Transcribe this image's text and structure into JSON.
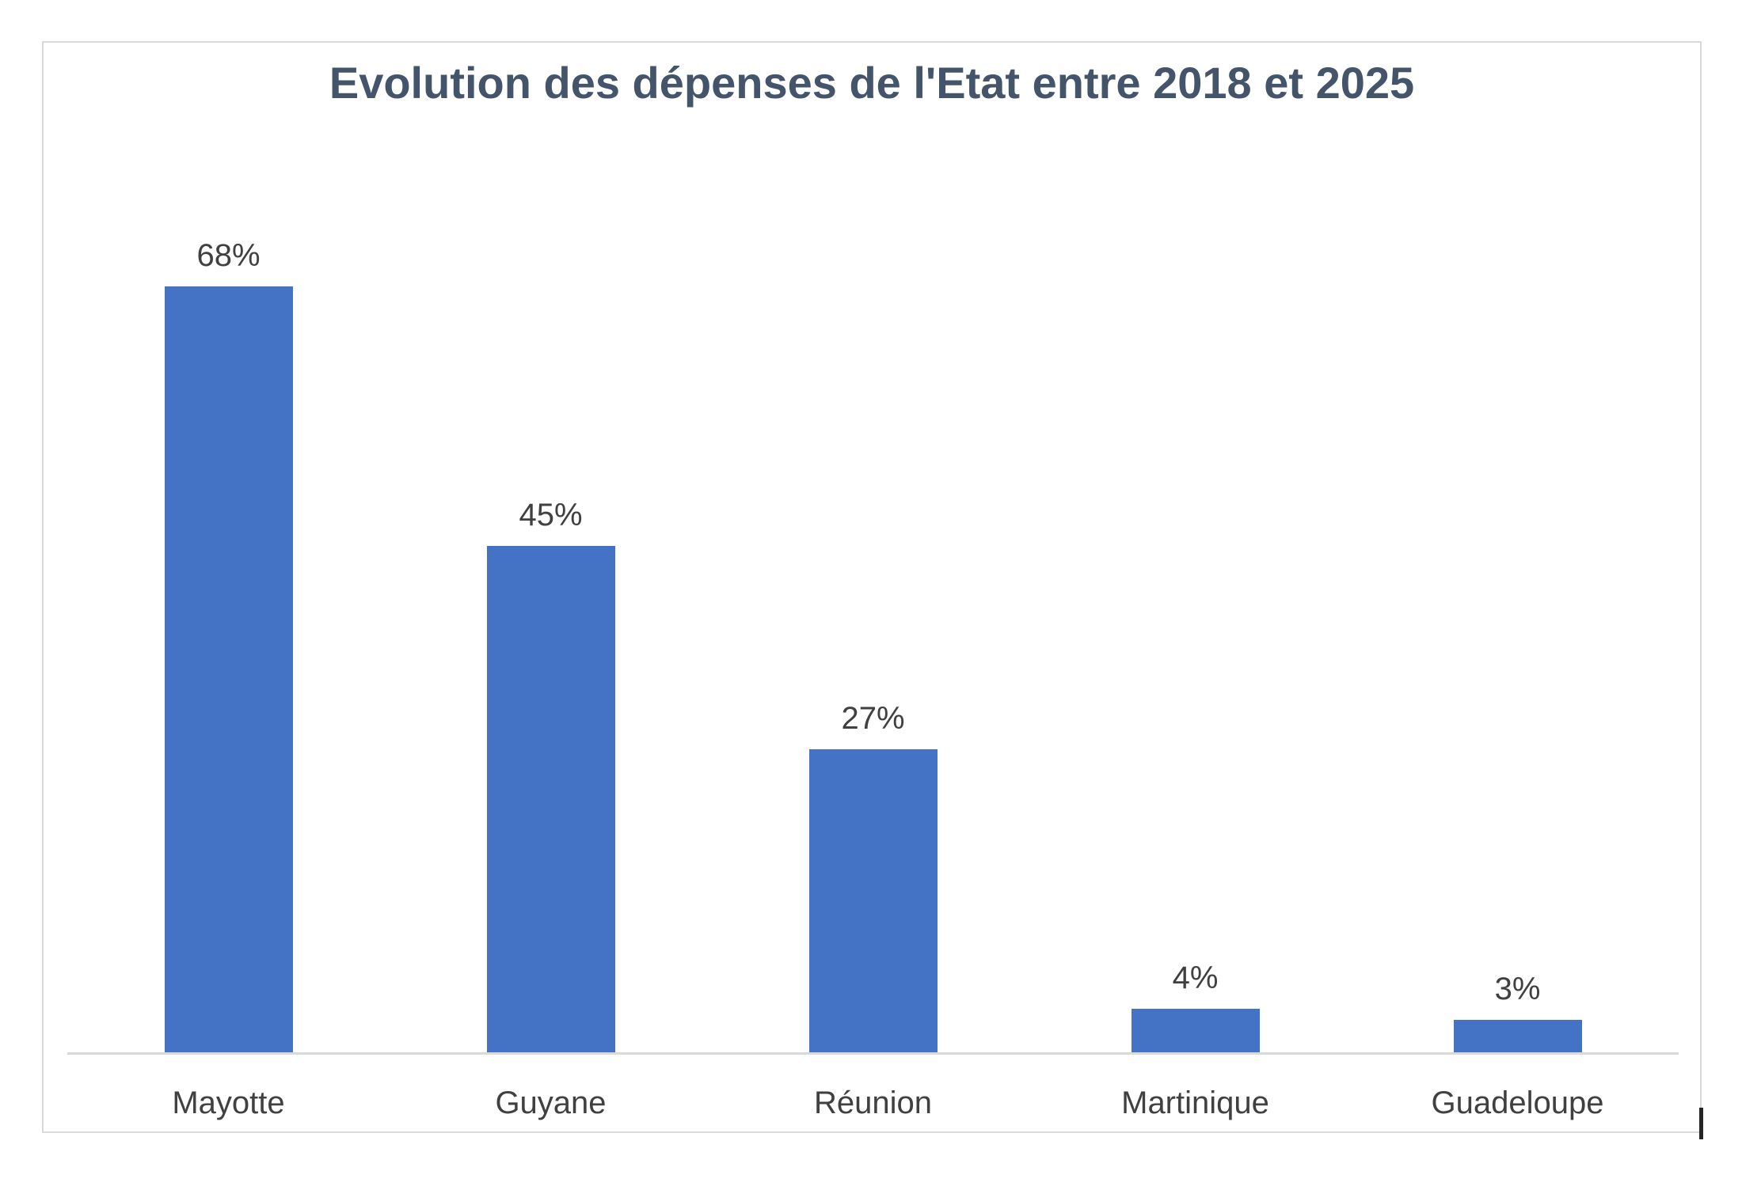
{
  "chart_data": {
    "type": "bar",
    "title": "Evolution des dépenses de l'Etat entre 2018 et 2025",
    "categories": [
      "Mayotte",
      "Guyane",
      "Réunion",
      "Martinique",
      "Guadeloupe"
    ],
    "values": [
      68,
      45,
      27,
      4,
      3
    ],
    "value_labels": [
      "68%",
      "45%",
      "27%",
      "4%",
      "3%"
    ],
    "xlabel": "",
    "ylabel": "",
    "ylim": [
      0,
      70
    ],
    "grid": false,
    "legend": "none",
    "colors": {
      "bar": "#4472C4",
      "title": "#44546A",
      "labels": "#404040",
      "axis_line": "#D9D9D9",
      "frame_border": "#D9D9D9",
      "background": "#FFFFFF"
    }
  },
  "cursor": {
    "type": "text-caret",
    "visible": true
  }
}
